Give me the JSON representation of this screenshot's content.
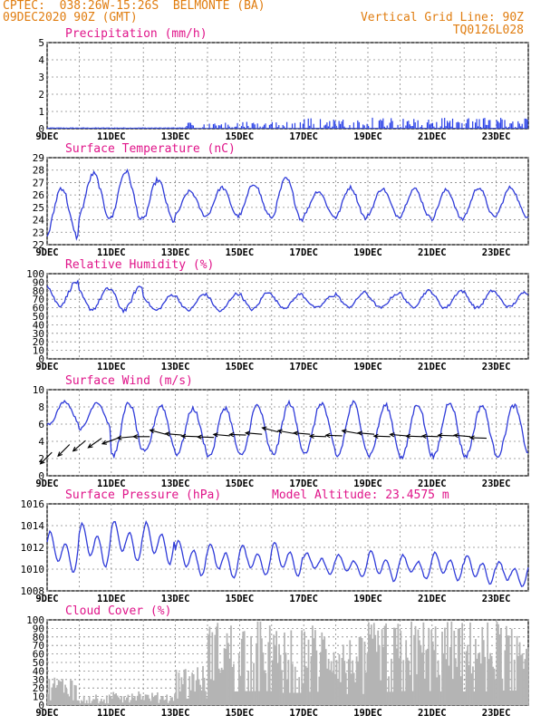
{
  "header": {
    "title_line": "CPTEC:  038:26W-15:26S  BELMONTE (BA)",
    "date_line": "09DEC2020 90Z (GMT)",
    "grid_note": "Vertical Grid Line: 90Z",
    "run_code": "TQ0126L028"
  },
  "colors": {
    "header_text": "#e07d10",
    "panel_title": "#e0158a",
    "line": "#2f3bd9",
    "bars": "#2840e8",
    "cloud": "#b4b4b4",
    "wind_arrow": "#000000"
  },
  "chart_data": [
    {
      "id": "precip",
      "type": "bar",
      "title": "Precipitation (mm/h)",
      "ylim": [
        0,
        5
      ],
      "yticks": [
        "0",
        "1",
        "2",
        "3",
        "4",
        "5"
      ],
      "xticks": [
        "9DEC",
        "11DEC",
        "13DEC",
        "15DEC",
        "17DEC",
        "19DEC",
        "21DEC",
        "23DEC"
      ],
      "day_range": [
        0,
        15
      ],
      "description_values": "hourly rain rate: ~0.05 before 13DEC, light showers 0.1-0.6 after 13.5DEC",
      "values": []
    },
    {
      "id": "temp",
      "type": "line",
      "title": "Surface Temperature (nC)",
      "ylim": [
        22,
        29
      ],
      "yticks": [
        "22",
        "23",
        "24",
        "25",
        "26",
        "27",
        "28",
        "29"
      ],
      "xticks": [
        "9DEC",
        "11DEC",
        "13DEC",
        "15DEC",
        "17DEC",
        "19DEC",
        "21DEC",
        "23DEC"
      ],
      "daily_min": [
        22.6,
        24.2,
        24.0,
        23.9,
        24.3,
        24.3,
        24.3,
        24.0,
        24.3,
        24.1,
        24.3,
        24.2,
        24.0,
        24.2,
        24.3
      ],
      "daily_max": [
        26.6,
        27.7,
        27.9,
        27.2,
        26.3,
        26.6,
        26.9,
        27.3,
        26.3,
        26.6,
        26.5,
        26.5,
        26.4,
        26.6,
        26.6
      ]
    },
    {
      "id": "rh",
      "type": "line",
      "title": "Relative Humidity (%)",
      "ylim": [
        0,
        100
      ],
      "yticks": [
        "0",
        "10",
        "20",
        "30",
        "40",
        "50",
        "60",
        "70",
        "80",
        "90",
        "100"
      ],
      "xticks": [
        "9DEC",
        "11DEC",
        "13DEC",
        "15DEC",
        "17DEC",
        "19DEC",
        "21DEC",
        "23DEC"
      ],
      "daily_min": [
        63,
        58,
        57,
        57,
        57,
        56,
        58,
        60,
        60,
        61,
        60,
        61,
        60,
        60,
        61
      ],
      "daily_max": [
        90,
        82,
        85,
        75,
        76,
        76,
        79,
        76,
        74,
        78,
        76,
        80,
        80,
        80,
        78
      ]
    },
    {
      "id": "wind",
      "type": "line",
      "title": "Surface Wind (m/s)",
      "ylim": [
        0,
        11
      ],
      "yticks": [
        "0",
        "2",
        "4",
        "6",
        "8",
        "10"
      ],
      "xticks": [
        "9DEC",
        "11DEC",
        "13DEC",
        "15DEC",
        "17DEC",
        "19DEC",
        "21DEC",
        "23DEC"
      ],
      "daily_min": [
        6.6,
        6.0,
        2.5,
        3.0,
        2.8,
        2.5,
        2.5,
        2.8,
        3.0,
        2.5,
        2.6,
        2.3,
        2.4,
        2.5,
        2.6
      ],
      "daily_max": [
        9.5,
        9.4,
        9.3,
        9.0,
        8.6,
        8.7,
        9.0,
        9.3,
        9.3,
        9.3,
        9.0,
        9.2,
        9.5,
        9.0,
        9.0
      ],
      "arrows": [
        {
          "day": 0.15,
          "speed": 3.0,
          "dir_deg": 225
        },
        {
          "day": 0.7,
          "speed": 4.0,
          "dir_deg": 225
        },
        {
          "day": 1.2,
          "speed": 4.5,
          "dir_deg": 230
        },
        {
          "day": 1.7,
          "speed": 4.8,
          "dir_deg": 235
        },
        {
          "day": 2.2,
          "speed": 4.8,
          "dir_deg": 250
        },
        {
          "day": 2.7,
          "speed": 5.0,
          "dir_deg": 265
        },
        {
          "day": 3.2,
          "speed": 5.0,
          "dir_deg": 270
        },
        {
          "day": 3.7,
          "speed": 5.3,
          "dir_deg": 285
        },
        {
          "day": 4.2,
          "speed": 5.2,
          "dir_deg": 275
        },
        {
          "day": 4.7,
          "speed": 5.0,
          "dir_deg": 272
        },
        {
          "day": 5.2,
          "speed": 4.9,
          "dir_deg": 272
        },
        {
          "day": 5.7,
          "speed": 5.1,
          "dir_deg": 275
        },
        {
          "day": 6.2,
          "speed": 5.2,
          "dir_deg": 272
        },
        {
          "day": 6.7,
          "speed": 5.3,
          "dir_deg": 275
        },
        {
          "day": 7.2,
          "speed": 5.6,
          "dir_deg": 285
        },
        {
          "day": 7.7,
          "speed": 5.4,
          "dir_deg": 280
        },
        {
          "day": 8.2,
          "speed": 5.3,
          "dir_deg": 275
        },
        {
          "day": 8.7,
          "speed": 5.0,
          "dir_deg": 272
        },
        {
          "day": 9.2,
          "speed": 5.1,
          "dir_deg": 272
        },
        {
          "day": 9.7,
          "speed": 5.4,
          "dir_deg": 280
        },
        {
          "day": 10.2,
          "speed": 5.3,
          "dir_deg": 275
        },
        {
          "day": 10.7,
          "speed": 5.0,
          "dir_deg": 272
        },
        {
          "day": 11.2,
          "speed": 5.1,
          "dir_deg": 275
        },
        {
          "day": 11.7,
          "speed": 5.0,
          "dir_deg": 272
        },
        {
          "day": 12.2,
          "speed": 5.0,
          "dir_deg": 272
        },
        {
          "day": 12.7,
          "speed": 5.1,
          "dir_deg": 272
        },
        {
          "day": 13.2,
          "speed": 5.0,
          "dir_deg": 275
        },
        {
          "day": 13.7,
          "speed": 4.8,
          "dir_deg": 272
        }
      ]
    },
    {
      "id": "pres",
      "type": "line",
      "title": "Surface Pressure (hPa)",
      "annotation": "Model Altitude: 23.4575 m",
      "ylim": [
        1008,
        1016
      ],
      "yticks": [
        "1008",
        "1010",
        "1012",
        "1014",
        "1016"
      ],
      "xticks": [
        "9DEC",
        "11DEC",
        "13DEC",
        "15DEC",
        "17DEC",
        "19DEC",
        "21DEC",
        "23DEC"
      ],
      "daily_min": [
        1009.5,
        1010.0,
        1010.5,
        1010.2,
        1009.2,
        1009.0,
        1009.3,
        1009.2,
        1009.4,
        1009.2,
        1008.7,
        1009.0,
        1008.8,
        1008.5,
        1008.3
      ],
      "daily_max": [
        1013.6,
        1014.4,
        1014.6,
        1014.5,
        1012.8,
        1012.5,
        1012.3,
        1012.6,
        1011.6,
        1011.4,
        1011.8,
        1011.4,
        1011.7,
        1011.4,
        1010.8
      ]
    },
    {
      "id": "cloud",
      "type": "area",
      "title": "Cloud Cover (%)",
      "ylim": [
        0,
        100
      ],
      "yticks": [
        "0",
        "10",
        "20",
        "30",
        "40",
        "50",
        "60",
        "70",
        "80",
        "90",
        "100"
      ],
      "xticks": [
        "9DEC",
        "11DEC",
        "13DEC",
        "15DEC",
        "17DEC",
        "19DEC",
        "21DEC",
        "23DEC"
      ],
      "daily_level": [
        28,
        10,
        15,
        12,
        38,
        80,
        82,
        72,
        78,
        65,
        78,
        82,
        80,
        80,
        85
      ],
      "values": []
    }
  ]
}
